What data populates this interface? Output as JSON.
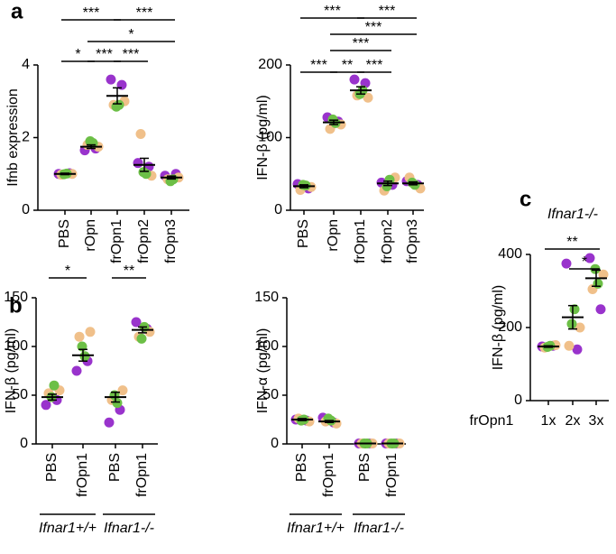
{
  "chart_data": [
    {
      "type": "strip",
      "panel": "a",
      "ylabel": "Ifnb expression",
      "categories": [
        "PBS",
        "rOpn",
        "frOpn1",
        "frOpn2",
        "frOpn3"
      ],
      "means": [
        1.0,
        1.75,
        3.15,
        1.25,
        0.9
      ],
      "errors": [
        0.02,
        0.05,
        0.22,
        0.18,
        0.04
      ],
      "points": [
        [
          1.0,
          1.02,
          0.98,
          1.0,
          1.01,
          0.99
        ],
        [
          1.65,
          1.7,
          1.8,
          1.75,
          1.85,
          1.9
        ],
        [
          3.6,
          3.45,
          2.9,
          3.0,
          2.9,
          2.85
        ],
        [
          1.3,
          1.2,
          2.1,
          0.95,
          1.0,
          1.05
        ],
        [
          0.95,
          1.0,
          0.85,
          0.9,
          0.85,
          0.8
        ]
      ],
      "colors": [
        "#9933cc",
        "#f0c08a",
        "#6cbf46"
      ],
      "ylim": [
        0,
        4
      ],
      "yticks": [
        0,
        2,
        4
      ],
      "comparisons": [
        [
          {
            "from": 0,
            "to": 2,
            "label": "***"
          },
          {
            "from": 2,
            "to": 4,
            "label": "***"
          }
        ],
        [
          {
            "from": 1,
            "to": 4,
            "label": "*"
          }
        ],
        [
          {
            "from": 0,
            "to": 1,
            "label": "*"
          },
          {
            "from": 1,
            "to": 2,
            "label": "***"
          },
          {
            "from": 2,
            "to": 3,
            "label": "***"
          }
        ]
      ]
    },
    {
      "type": "strip",
      "ylabel": "IFN-β (pg/ml)",
      "categories": [
        "PBS",
        "rOpn",
        "frOpn1",
        "frOpn2",
        "frOpn3"
      ],
      "means": [
        33,
        121,
        165,
        37,
        37
      ],
      "errors": [
        2,
        3,
        5,
        3,
        2
      ],
      "points": [
        [
          36,
          30,
          28,
          32,
          34,
          35
        ],
        [
          128,
          122,
          112,
          118,
          120,
          125
        ],
        [
          180,
          175,
          158,
          155,
          165,
          160
        ],
        [
          38,
          35,
          27,
          45,
          42,
          33
        ],
        [
          40,
          35,
          45,
          30,
          35,
          38
        ]
      ],
      "colors": [
        "#9933cc",
        "#f0c08a",
        "#6cbf46"
      ],
      "ylim": [
        0,
        200
      ],
      "yticks": [
        0,
        100,
        200
      ],
      "comparisons": [
        [
          {
            "from": 0,
            "to": 2,
            "label": "***"
          },
          {
            "from": 2,
            "to": 4,
            "label": "***"
          }
        ],
        [
          {
            "from": 1,
            "to": 4,
            "label": "***"
          }
        ],
        [
          {
            "from": 1,
            "to": 3,
            "label": "***"
          }
        ],
        [
          {
            "from": 0,
            "to": 1,
            "label": "***"
          },
          {
            "from": 1,
            "to": 2,
            "label": "**"
          },
          {
            "from": 2,
            "to": 3,
            "label": "***"
          }
        ]
      ]
    },
    {
      "type": "strip",
      "panel": "b",
      "ylabel": "IFN-β (pg/ml)",
      "categories": [
        "PBS",
        "frOpn1",
        "PBS",
        "frOpn1"
      ],
      "means": [
        48,
        91,
        48,
        117
      ],
      "errors": [
        3,
        6,
        5,
        3
      ],
      "points": [
        [
          40,
          45,
          52,
          55,
          60,
          48
        ],
        [
          75,
          85,
          110,
          115,
          90,
          100
        ],
        [
          22,
          35,
          45,
          55,
          42,
          50
        ],
        [
          125,
          118,
          110,
          115,
          120,
          108
        ]
      ],
      "colors": [
        "#9933cc",
        "#f0c08a",
        "#6cbf46"
      ],
      "ylim": [
        0,
        150
      ],
      "yticks": [
        0,
        50,
        100,
        150
      ],
      "comparisons": [
        [
          {
            "from": 0,
            "to": 1,
            "label": "*"
          },
          {
            "from": 2,
            "to": 3,
            "label": "**"
          }
        ]
      ],
      "groups": [
        {
          "label": "Ifnar1+/+",
          "from": 0,
          "to": 1
        },
        {
          "label": "Ifnar1-/-",
          "from": 2,
          "to": 3
        }
      ]
    },
    {
      "type": "strip",
      "ylabel": "IFN-α (pg/ml)",
      "categories": [
        "PBS",
        "frOpn1",
        "PBS",
        "frOpn1"
      ],
      "means": [
        25,
        23,
        0.5,
        0.5
      ],
      "errors": [
        1,
        1,
        0.2,
        0.2
      ],
      "points": [
        [
          25,
          24,
          26,
          23,
          25,
          24
        ],
        [
          27,
          22,
          23,
          21,
          24,
          26
        ],
        [
          0.5,
          0.5,
          0.5,
          0.5,
          0.5,
          0.5
        ],
        [
          0.5,
          0.5,
          0.5,
          0.5,
          0.5,
          0.5
        ]
      ],
      "colors": [
        "#9933cc",
        "#f0c08a",
        "#6cbf46"
      ],
      "ylim": [
        0,
        150
      ],
      "yticks": [
        0,
        50,
        100,
        150
      ],
      "groups": [
        {
          "label": "Ifnar1+/+",
          "from": 0,
          "to": 1
        },
        {
          "label": "Ifnar1-/-",
          "from": 2,
          "to": 3
        }
      ]
    },
    {
      "type": "strip",
      "panel": "c",
      "title": "Ifnar1-/-",
      "ylabel": "IFN-β (pg/ml)",
      "xlabel": "frOpn1",
      "categories": [
        "1x",
        "2x",
        "3x"
      ],
      "means": [
        148,
        228,
        335
      ],
      "errors": [
        2,
        32,
        22
      ],
      "points": [
        [
          148,
          150,
          145,
          152,
          150,
          147
        ],
        [
          375,
          140,
          150,
          200,
          250,
          210
        ],
        [
          390,
          250,
          305,
          345,
          320,
          360
        ]
      ],
      "colors": [
        "#9933cc",
        "#f0c08a",
        "#6cbf46"
      ],
      "ylim": [
        0,
        400
      ],
      "yticks": [
        0,
        200,
        400
      ],
      "comparisons": [
        [
          {
            "from": 0,
            "to": 2,
            "label": "**"
          }
        ],
        [
          {
            "from": 1,
            "to": 2,
            "label": "*"
          }
        ]
      ]
    }
  ]
}
